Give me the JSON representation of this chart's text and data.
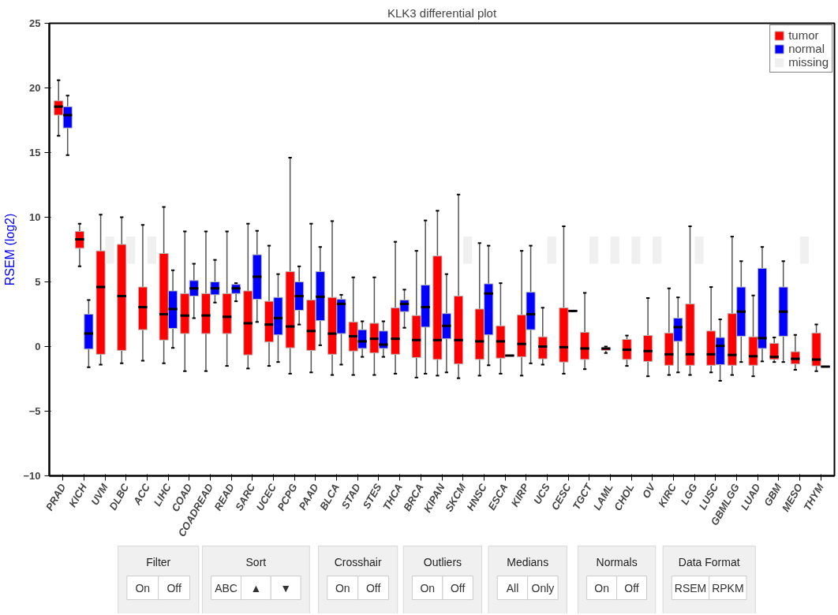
{
  "chart_data": {
    "type": "box",
    "title": "KLK3 differential plot",
    "ylabel": "RSEM (log2)",
    "categories": [
      "PRAD",
      "KICH",
      "UVM",
      "DLBC",
      "ACC",
      "LIHC",
      "COAD",
      "COADREAD",
      "READ",
      "SARC",
      "UCEC",
      "PCPG",
      "PAAD",
      "BLCA",
      "STAD",
      "STES",
      "THCA",
      "BRCA",
      "KIPAN",
      "SKCM",
      "HNSC",
      "ESCA",
      "KIRP",
      "UCS",
      "CESC",
      "TGCT",
      "LAML",
      "CHOL",
      "OV",
      "KIRC",
      "LGG",
      "LUSC",
      "GBMLGG",
      "LUAD",
      "GBM",
      "MESO",
      "THYM"
    ],
    "ylim": [
      -10,
      25
    ],
    "yticks": [
      -10,
      -5,
      0,
      5,
      10,
      15,
      20,
      25
    ],
    "grid": false,
    "legend": "top right",
    "series": [
      {
        "name": "tumor",
        "color": "#ff0000",
        "boxes": [
          {
            "low": 16.3,
            "q1": 17.9,
            "median": 18.55,
            "q3": 19.0,
            "high": 20.6
          },
          {
            "low": 6.2,
            "q1": 7.6,
            "median": 8.3,
            "q3": 8.9,
            "high": 9.5
          },
          {
            "low": -1.4,
            "q1": -0.6,
            "median": 4.6,
            "q3": 7.4,
            "high": 10.2
          },
          {
            "low": -1.3,
            "q1": -0.3,
            "median": 3.9,
            "q3": 7.9,
            "high": 10.0
          },
          {
            "low": -1.1,
            "q1": 1.3,
            "median": 3.05,
            "q3": 4.6,
            "high": 9.4
          },
          {
            "low": -1.3,
            "q1": 0.5,
            "median": 2.5,
            "q3": 7.2,
            "high": 10.8
          },
          {
            "low": -1.9,
            "q1": 1.0,
            "median": 2.4,
            "q3": 4.1,
            "high": 8.9
          },
          {
            "low": -1.9,
            "q1": 1.0,
            "median": 2.4,
            "q3": 4.1,
            "high": 8.9
          },
          {
            "low": -1.5,
            "q1": 1.0,
            "median": 2.3,
            "q3": 4.1,
            "high": 8.9
          },
          {
            "low": -1.7,
            "q1": -0.65,
            "median": 1.8,
            "q3": 4.3,
            "high": 9.5
          },
          {
            "low": -1.5,
            "q1": 0.35,
            "median": 1.7,
            "q3": 3.5,
            "high": 7.8
          },
          {
            "low": -2.1,
            "q1": -0.1,
            "median": 1.55,
            "q3": 5.8,
            "high": 14.6
          },
          {
            "low": -2.0,
            "q1": -0.3,
            "median": 1.2,
            "q3": 3.6,
            "high": 9.5
          },
          {
            "low": -2.2,
            "q1": -0.6,
            "median": 1.0,
            "q3": 3.8,
            "high": 9.7
          },
          {
            "low": -2.2,
            "q1": -0.35,
            "median": 0.8,
            "q3": 1.9,
            "high": 5.35
          },
          {
            "low": -2.2,
            "q1": -0.5,
            "median": 0.6,
            "q3": 1.8,
            "high": 5.35
          },
          {
            "low": -2.1,
            "q1": -0.6,
            "median": 0.6,
            "q3": 3.0,
            "high": 8.1
          },
          {
            "low": -2.4,
            "q1": -0.85,
            "median": 0.5,
            "q3": 2.4,
            "high": 7.4
          },
          {
            "low": -2.25,
            "q1": -1.0,
            "median": 0.5,
            "q3": 7.0,
            "high": 10.5
          },
          {
            "low": -2.45,
            "q1": -1.35,
            "median": 0.5,
            "q3": 3.9,
            "high": 11.75
          },
          {
            "low": -2.25,
            "q1": -1.0,
            "median": 0.4,
            "q3": 2.9,
            "high": 8.0
          },
          {
            "low": -2.1,
            "q1": -0.9,
            "median": 0.4,
            "q3": 1.6,
            "high": 4.9
          },
          {
            "low": -2.25,
            "q1": -0.8,
            "median": 0.2,
            "q3": 2.45,
            "high": 7.4
          },
          {
            "low": -1.4,
            "q1": -0.95,
            "median": 0.0,
            "q3": 0.75,
            "high": 3.0
          },
          {
            "low": -2.1,
            "q1": -1.2,
            "median": -0.05,
            "q3": 3.0,
            "high": 9.3
          },
          {
            "low": -1.75,
            "q1": -1.0,
            "median": -0.15,
            "q3": 1.1,
            "high": 4.15
          },
          {
            "low": -0.5,
            "q1": -0.3,
            "median": -0.15,
            "q3": -0.1,
            "high": 0.0
          },
          {
            "low": -1.5,
            "q1": -1.0,
            "median": -0.25,
            "q3": 0.55,
            "high": 0.85
          },
          {
            "low": -2.3,
            "q1": -1.15,
            "median": -0.35,
            "q3": 0.85,
            "high": 3.75
          },
          {
            "low": -2.2,
            "q1": -1.45,
            "median": -0.6,
            "q3": 1.05,
            "high": 4.5
          },
          {
            "low": -2.2,
            "q1": -1.45,
            "median": -0.6,
            "q3": 3.3,
            "high": 9.3
          },
          {
            "low": -2.0,
            "q1": -1.45,
            "median": -0.6,
            "q3": 1.2,
            "high": 4.6
          },
          {
            "low": -2.2,
            "q1": -1.45,
            "median": -0.65,
            "q3": 2.55,
            "high": 8.5
          },
          {
            "low": -2.3,
            "q1": -1.45,
            "median": -0.75,
            "q3": 0.75,
            "high": 3.95
          },
          {
            "low": -1.2,
            "q1": -1.0,
            "median": -0.8,
            "q3": 0.25,
            "high": 0.7
          },
          {
            "low": -1.8,
            "q1": -1.35,
            "median": -0.95,
            "q3": -0.4,
            "high": 0.9
          },
          {
            "low": -1.9,
            "q1": -1.5,
            "median": -1.0,
            "q3": 1.05,
            "high": 1.7
          }
        ]
      },
      {
        "name": "normal",
        "color": "#0000ff",
        "boxes": [
          {
            "low": 14.8,
            "q1": 16.9,
            "median": 17.9,
            "q3": 18.55,
            "high": 19.4
          },
          {
            "low": -1.6,
            "q1": -0.2,
            "median": 1.0,
            "q3": 2.5,
            "high": 3.6
          },
          null,
          null,
          null,
          {
            "low": -0.1,
            "q1": 1.4,
            "median": 2.9,
            "q3": 4.3,
            "high": 5.9
          },
          {
            "low": 2.2,
            "q1": 3.9,
            "median": 4.5,
            "q3": 5.1,
            "high": 6.4
          },
          {
            "low": 3.4,
            "q1": 4.0,
            "median": 4.5,
            "q3": 5.0,
            "high": 6.7
          },
          {
            "low": 3.5,
            "q1": 4.1,
            "median": 4.5,
            "q3": 4.8,
            "high": 4.9
          },
          {
            "low": 1.9,
            "q1": 3.65,
            "median": 5.4,
            "q3": 7.1,
            "high": 8.95
          },
          {
            "low": -1.2,
            "q1": 0.9,
            "median": 2.2,
            "q3": 3.8,
            "high": 5.6
          },
          {
            "low": 1.7,
            "q1": 2.8,
            "median": 3.9,
            "q3": 5.0,
            "high": 6.2
          },
          {
            "low": 0.1,
            "q1": 2.0,
            "median": 3.85,
            "q3": 5.8,
            "high": 7.7
          },
          {
            "low": -1.4,
            "q1": 1.0,
            "median": 3.3,
            "q3": 3.65,
            "high": 4.0
          },
          {
            "low": -0.8,
            "q1": -0.15,
            "median": 0.4,
            "q3": 1.3,
            "high": 1.95
          },
          {
            "low": -0.8,
            "q1": -0.15,
            "median": 0.15,
            "q3": 1.2,
            "high": 1.95
          },
          {
            "low": 1.45,
            "q1": 2.7,
            "median": 3.3,
            "q3": 3.6,
            "high": 4.4
          },
          {
            "low": -2.1,
            "q1": 1.5,
            "median": 3.05,
            "q3": 4.75,
            "high": 9.75
          },
          {
            "low": -2.0,
            "q1": 0.6,
            "median": 1.6,
            "q3": 2.55,
            "high": 5.6
          },
          null,
          {
            "low": -1.45,
            "q1": 0.9,
            "median": 4.1,
            "q3": 4.85,
            "high": 7.8
          },
          {
            "low": -0.7,
            "q1": -0.7,
            "median": -0.7,
            "q3": -0.7,
            "high": -0.7
          },
          {
            "low": -1.3,
            "q1": 1.3,
            "median": 2.5,
            "q3": 4.2,
            "high": 7.8
          },
          null,
          {
            "low": 2.75,
            "q1": 2.75,
            "median": 2.75,
            "q3": 2.75,
            "high": 2.75
          },
          null,
          null,
          null,
          null,
          {
            "low": -2.0,
            "q1": 0.4,
            "median": 1.5,
            "q3": 2.2,
            "high": 3.8
          },
          null,
          {
            "low": -2.65,
            "q1": -1.4,
            "median": 0.05,
            "q3": 0.7,
            "high": 2.1
          },
          {
            "low": -1.2,
            "q1": 0.8,
            "median": 2.7,
            "q3": 4.6,
            "high": 6.6
          },
          {
            "low": -1.15,
            "q1": -0.15,
            "median": 0.65,
            "q3": 6.05,
            "high": 7.7
          },
          {
            "low": -1.2,
            "q1": 0.8,
            "median": 2.7,
            "q3": 4.6,
            "high": 6.6
          },
          null,
          {
            "low": -1.55,
            "q1": -1.55,
            "median": -1.55,
            "q3": -1.55,
            "high": -1.55
          }
        ]
      },
      {
        "name": "missing",
        "type": "bar",
        "color": "#f0f0f0",
        "base": [
          null,
          null,
          6.4,
          6.4,
          6.4,
          null,
          null,
          null,
          null,
          null,
          null,
          null,
          null,
          null,
          null,
          null,
          null,
          null,
          null,
          6.4,
          null,
          null,
          null,
          6.4,
          null,
          6.4,
          6.4,
          6.4,
          6.4,
          null,
          6.4,
          null,
          null,
          null,
          null,
          6.4,
          null
        ],
        "values": [
          null,
          null,
          2.1,
          2.1,
          2.1,
          null,
          null,
          null,
          null,
          null,
          null,
          null,
          null,
          null,
          null,
          null,
          null,
          null,
          null,
          2.1,
          null,
          null,
          null,
          2.1,
          null,
          2.1,
          2.1,
          2.1,
          2.1,
          null,
          2.1,
          null,
          null,
          null,
          null,
          2.1,
          null
        ]
      }
    ],
    "annotations": [
      "Filter",
      "On",
      "Off",
      "Sort",
      "ABC",
      "▲",
      "▼",
      "Crosshair",
      "On",
      "Off",
      "Outliers",
      "On",
      "Off",
      "Medians",
      "All",
      "Only",
      "Normals",
      "On",
      "Off",
      "Data Format",
      "RSEM",
      "RPKM"
    ]
  }
}
